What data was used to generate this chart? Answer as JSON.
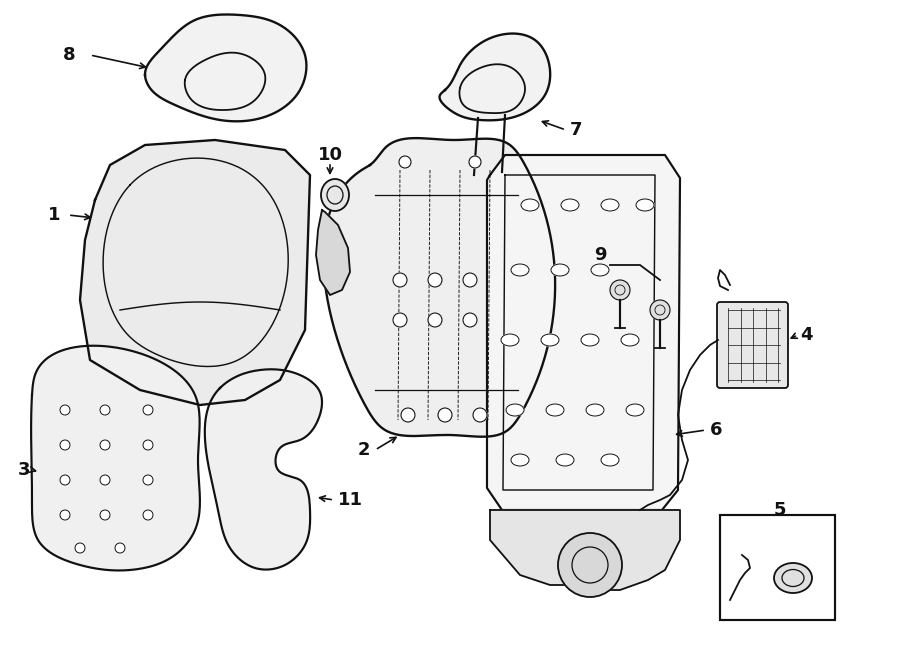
{
  "bg_color": "#ffffff",
  "line_color": "#111111",
  "lw": 1.3,
  "fig_width": 9.0,
  "fig_height": 6.61,
  "dpi": 100
}
